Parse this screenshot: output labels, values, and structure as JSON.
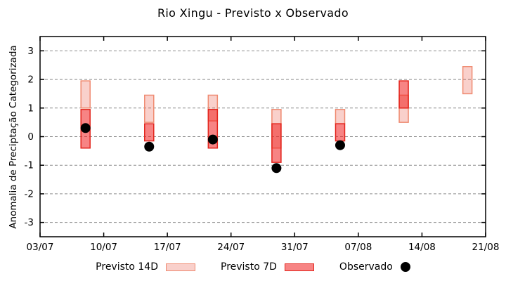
{
  "chart_data": {
    "type": "bar",
    "title": "Rio Xingu - Previsto x Observado",
    "xlabel": "",
    "ylabel": "Anomalia de Preciptação Categorizada",
    "ylim": [
      -3.5,
      3.5
    ],
    "yticks": [
      -3,
      -2,
      -1,
      0,
      1,
      2,
      3
    ],
    "xticks": [
      {
        "day": 0,
        "label": "03/07"
      },
      {
        "day": 7,
        "label": "10/07"
      },
      {
        "day": 14,
        "label": "17/07"
      },
      {
        "day": 21,
        "label": "24/07"
      },
      {
        "day": 28,
        "label": "31/07"
      },
      {
        "day": 35,
        "label": "07/08"
      },
      {
        "day": 42,
        "label": "14/08"
      },
      {
        "day": 49,
        "label": "21/08"
      }
    ],
    "grid": "horizontal-dashed",
    "legend_position": "bottom",
    "series": [
      {
        "name": "Previsto 14D",
        "style": "bar14",
        "points": [
          {
            "date": "08/07",
            "day": 5,
            "low": 1.0,
            "high": 1.95
          },
          {
            "date": "15/07",
            "day": 12,
            "low": 0.5,
            "high": 1.45
          },
          {
            "date": "22/07",
            "day": 19,
            "low": 0.55,
            "high": 1.45
          },
          {
            "date": "29/07",
            "day": 26,
            "low": -0.4,
            "high": 0.95
          },
          {
            "date": "05/08",
            "day": 33,
            "low": 0.45,
            "high": 0.95
          },
          {
            "date": "12/08",
            "day": 40,
            "low": 0.5,
            "high": 1.45
          },
          {
            "date": "19/08",
            "day": 47,
            "low": 1.5,
            "high": 2.45
          }
        ]
      },
      {
        "name": "Previsto 7D",
        "style": "bar7",
        "points": [
          {
            "date": "08/07",
            "day": 5,
            "low": -0.4,
            "high": 0.95
          },
          {
            "date": "15/07",
            "day": 12,
            "low": -0.15,
            "high": 0.45
          },
          {
            "date": "22/07",
            "day": 19,
            "low": -0.4,
            "high": 0.95
          },
          {
            "date": "29/07",
            "day": 26,
            "low": -0.9,
            "high": 0.45
          },
          {
            "date": "05/08",
            "day": 33,
            "low": -0.15,
            "high": 0.45
          },
          {
            "date": "12/08",
            "day": 40,
            "low": 1.0,
            "high": 1.95
          }
        ]
      },
      {
        "name": "Observado",
        "style": "dot",
        "points": [
          {
            "date": "08/07",
            "day": 5,
            "value": 0.3
          },
          {
            "date": "15/07",
            "day": 12,
            "value": -0.35
          },
          {
            "date": "22/07",
            "day": 19,
            "value": -0.1
          },
          {
            "date": "29/07",
            "day": 26,
            "value": -1.1
          },
          {
            "date": "05/08",
            "day": 33,
            "value": -0.3
          }
        ]
      }
    ]
  },
  "legend": {
    "items": [
      {
        "label": "Previsto 14D",
        "swatch": "bar14"
      },
      {
        "label": "Previsto 7D",
        "swatch": "bar7"
      },
      {
        "label": "Observado",
        "swatch": "dot"
      }
    ]
  },
  "colors": {
    "previsto14_fill": "rgba(232,68,47,0.25)",
    "previsto14_border": "#ef8a70",
    "previsto7_fill": "rgba(240,31,31,0.55)",
    "previsto7_border": "#e3241c",
    "observado": "#000000",
    "grid": "#8c8c8c",
    "axis": "#000000",
    "background": "#ffffff"
  }
}
